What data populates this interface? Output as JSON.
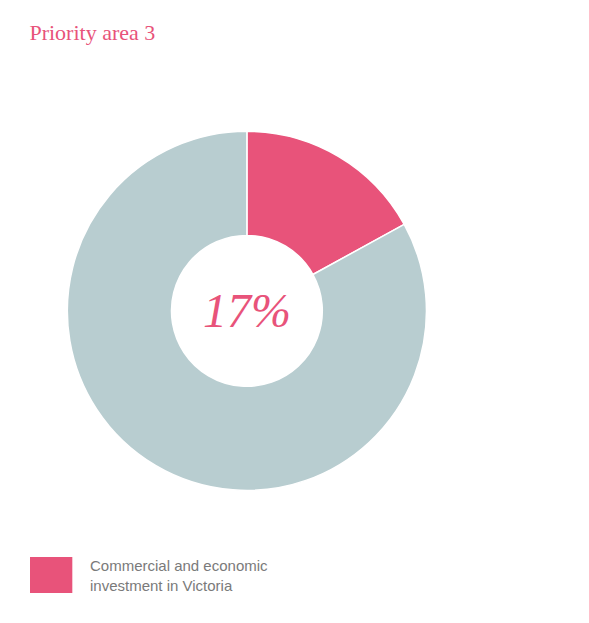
{
  "chart_data": {
    "type": "pie",
    "title": "Priority area 3",
    "categories": [
      "Commercial and economic\ninvestment in Victoria",
      null
    ],
    "values": [
      17,
      83
    ],
    "colors": [
      "#e8537a",
      "#b8cdd0"
    ],
    "annotations": [
      "17%"
    ],
    "legend": "bottom left"
  }
}
